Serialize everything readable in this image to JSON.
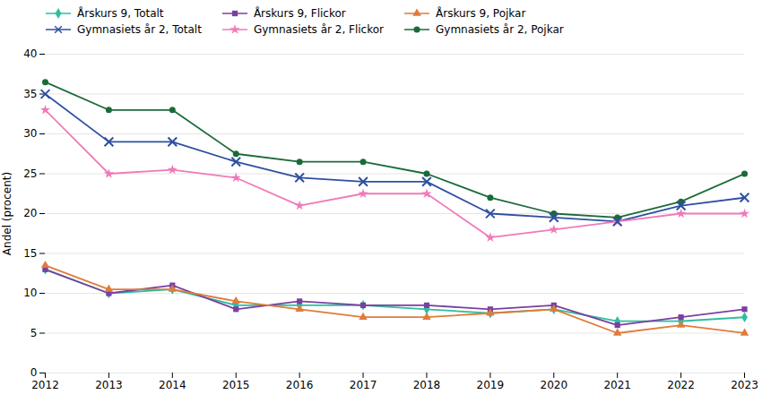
{
  "chart_data": {
    "type": "line",
    "x": [
      2012,
      2013,
      2014,
      2015,
      2016,
      2017,
      2018,
      2019,
      2020,
      2021,
      2022,
      2023
    ],
    "series": [
      {
        "name": "Årskurs 9, Totalt",
        "color": "#2BBFA0",
        "marker": "diamond",
        "values": [
          13.0,
          10.0,
          10.5,
          8.5,
          8.5,
          8.5,
          8.0,
          7.5,
          8.0,
          6.5,
          6.5,
          7.0
        ]
      },
      {
        "name": "Årskurs 9, Flickor",
        "color": "#7B3FA0",
        "marker": "square",
        "values": [
          13.0,
          10.0,
          11.0,
          8.0,
          9.0,
          8.5,
          8.5,
          8.0,
          8.5,
          6.0,
          7.0,
          8.0
        ]
      },
      {
        "name": "Årskurs 9, Pojkar",
        "color": "#E07B39",
        "marker": "triangle",
        "values": [
          13.5,
          10.5,
          10.5,
          9.0,
          8.0,
          7.0,
          7.0,
          7.5,
          8.0,
          5.0,
          6.0,
          5.0
        ]
      },
      {
        "name": "Gymnasiets år 2, Totalt",
        "color": "#2E4FA0",
        "marker": "x",
        "values": [
          35.0,
          29.0,
          29.0,
          26.5,
          24.5,
          24.0,
          24.0,
          20.0,
          19.5,
          19.0,
          21.0,
          22.0
        ]
      },
      {
        "name": "Gymnasiets år 2, Flickor",
        "color": "#F07AB8",
        "marker": "star",
        "values": [
          33.0,
          25.0,
          25.5,
          24.5,
          21.0,
          22.5,
          22.5,
          17.0,
          18.0,
          19.0,
          20.0,
          20.0
        ]
      },
      {
        "name": "Gymnasiets år 2, Pojkar",
        "color": "#1A6B3A",
        "marker": "circle",
        "values": [
          36.5,
          33.0,
          33.0,
          27.5,
          26.5,
          26.5,
          25.0,
          22.0,
          20.0,
          19.5,
          21.5,
          25.0
        ]
      }
    ],
    "ylabel": "Andel (procent)",
    "xlim": [
      2012,
      2023
    ],
    "xticks": [
      2012,
      2013,
      2014,
      2015,
      2016,
      2017,
      2018,
      2019,
      2020,
      2021,
      2022,
      2023
    ],
    "ylim": [
      0,
      40
    ],
    "yticks": [
      0,
      5,
      10,
      15,
      20,
      25,
      30,
      35,
      40
    ],
    "grid": "y",
    "legend": "top"
  }
}
